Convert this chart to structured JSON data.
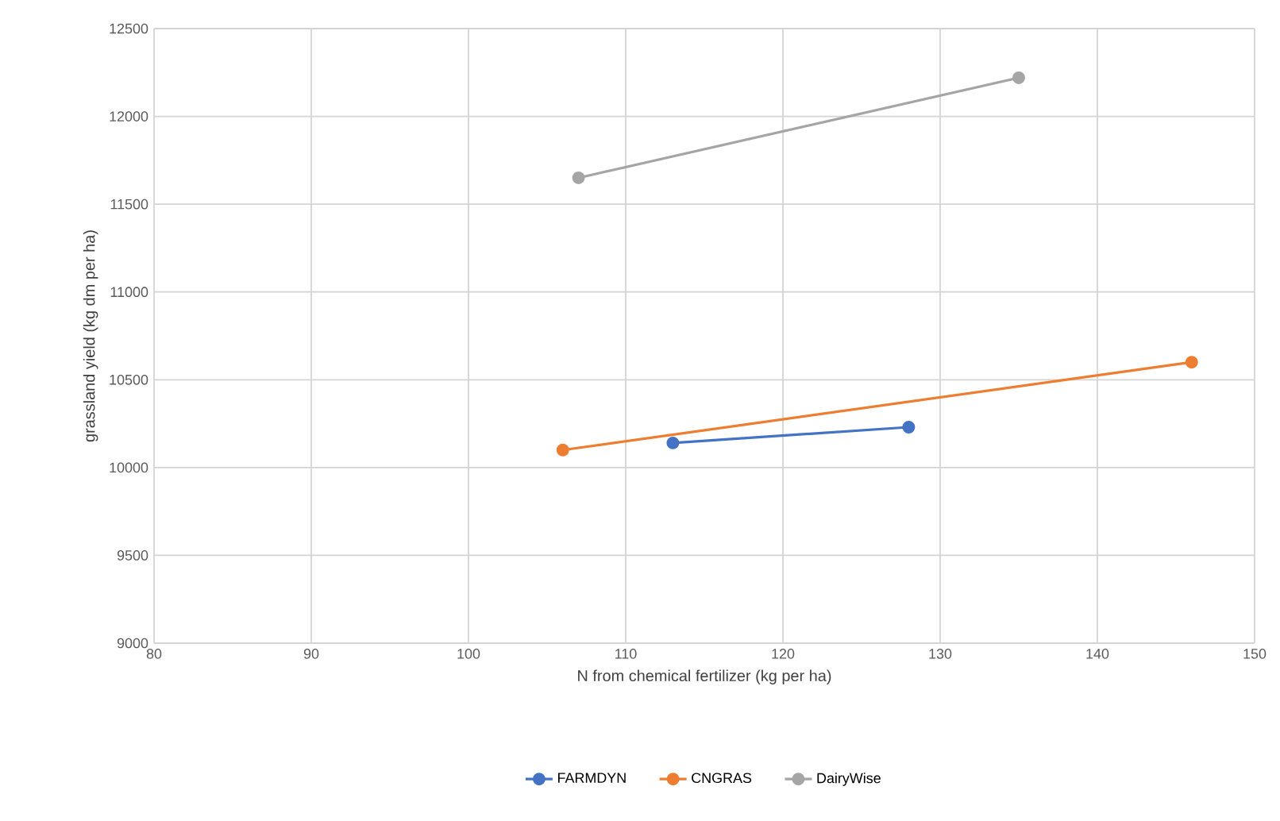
{
  "chart_data": {
    "type": "line",
    "xlabel": "N from chemical fertilizer (kg per ha)",
    "ylabel": "grassland yield (kg dm per ha)",
    "xlim": [
      80,
      150
    ],
    "xticks": [
      80,
      90,
      100,
      110,
      120,
      130,
      140,
      150
    ],
    "ylim": [
      9000,
      12500
    ],
    "yticks": [
      9000,
      9500,
      10000,
      10500,
      11000,
      11500,
      12000,
      12500
    ],
    "grid": true,
    "legend": "bottom",
    "marker": "circle",
    "line_style": "solid",
    "series": [
      {
        "name": "FARMDYN",
        "color": "#4472c4",
        "x": [
          113,
          128
        ],
        "values": [
          10140,
          10230
        ]
      },
      {
        "name": "CNGRAS",
        "color": "#ed7d31",
        "x": [
          106,
          146
        ],
        "values": [
          10100,
          10600
        ]
      },
      {
        "name": "DairyWise",
        "color": "#a5a5a5",
        "x": [
          107,
          135
        ],
        "values": [
          11650,
          12220
        ]
      }
    ]
  }
}
